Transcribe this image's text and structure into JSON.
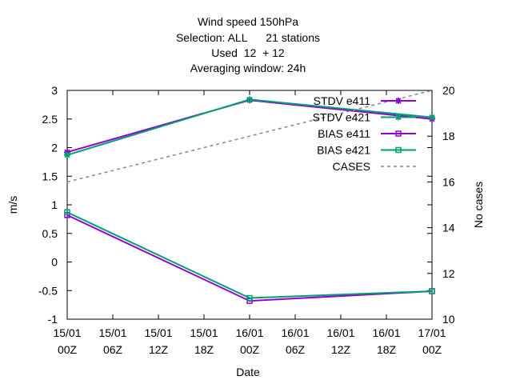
{
  "chart_data": {
    "type": "line",
    "title_lines": [
      "Wind speed 150hPa",
      "Selection: ALL      21 stations",
      "Used  12  + 12",
      "Averaging window: 24h"
    ],
    "xlabel": "Date",
    "ylabel": "m/s",
    "y2label": "No cases",
    "x_ticks": [
      {
        "line1": "15/01",
        "line2": "00Z",
        "hours": 0
      },
      {
        "line1": "15/01",
        "line2": "06Z",
        "hours": 6
      },
      {
        "line1": "15/01",
        "line2": "12Z",
        "hours": 12
      },
      {
        "line1": "15/01",
        "line2": "18Z",
        "hours": 18
      },
      {
        "line1": "16/01",
        "line2": "00Z",
        "hours": 24
      },
      {
        "line1": "16/01",
        "line2": "06Z",
        "hours": 30
      },
      {
        "line1": "16/01",
        "line2": "12Z",
        "hours": 36
      },
      {
        "line1": "16/01",
        "line2": "18Z",
        "hours": 42
      },
      {
        "line1": "17/01",
        "line2": "00Z",
        "hours": 48
      }
    ],
    "xlim_hours": [
      0,
      48
    ],
    "ylim": [
      -1,
      3
    ],
    "y_ticks": [
      "-1",
      "-0.5",
      "0",
      "0.5",
      "1",
      "1.5",
      "2",
      "2.5",
      "3"
    ],
    "y2lim": [
      10,
      20
    ],
    "y2_ticks": [
      "10",
      "12",
      "14",
      "16",
      "18",
      "20"
    ],
    "grid": false,
    "legend_position": "top-right",
    "series": [
      {
        "name": "STDV e411",
        "axis": "y1",
        "marker": "star",
        "color": "#9400d3",
        "dash": false,
        "points": [
          [
            0,
            1.92
          ],
          [
            24,
            2.83
          ],
          [
            48,
            2.5
          ]
        ]
      },
      {
        "name": "STDV e421",
        "axis": "y1",
        "marker": "star",
        "color": "#009e73",
        "dash": false,
        "points": [
          [
            0,
            1.87
          ],
          [
            24,
            2.84
          ],
          [
            48,
            2.53
          ]
        ]
      },
      {
        "name": "BIAS e411",
        "axis": "y1",
        "marker": "square",
        "color": "#9400d3",
        "dash": false,
        "points": [
          [
            0,
            0.82
          ],
          [
            24,
            -0.68
          ],
          [
            48,
            -0.51
          ]
        ]
      },
      {
        "name": "BIAS e421",
        "axis": "y1",
        "marker": "square",
        "color": "#009e73",
        "dash": false,
        "points": [
          [
            0,
            0.87
          ],
          [
            24,
            -0.63
          ],
          [
            48,
            -0.51
          ]
        ]
      },
      {
        "name": "CASES",
        "axis": "y2",
        "marker": "none",
        "color": "#888888",
        "dash": true,
        "points": [
          [
            0,
            16
          ],
          [
            24,
            18
          ],
          [
            48,
            20
          ]
        ]
      }
    ]
  }
}
